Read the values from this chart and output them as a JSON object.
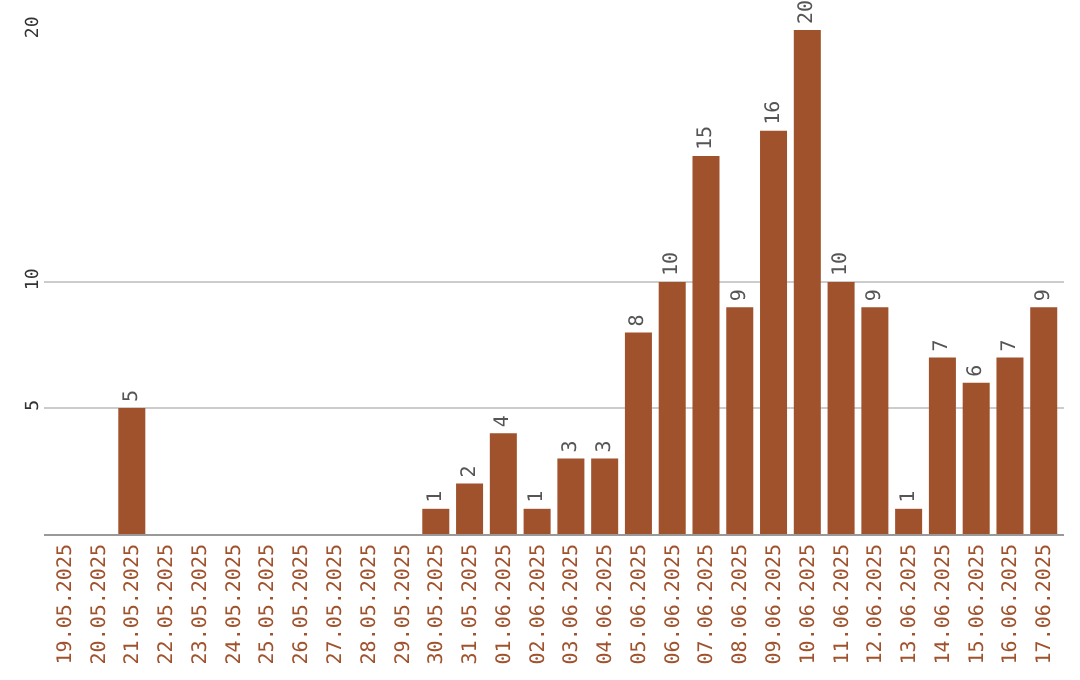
{
  "chart_data": {
    "type": "bar",
    "categories": [
      "19.05.2025",
      "20.05.2025",
      "21.05.2025",
      "22.05.2025",
      "23.05.2025",
      "24.05.2025",
      "25.05.2025",
      "26.05.2025",
      "27.05.2025",
      "28.05.2025",
      "29.05.2025",
      "30.05.2025",
      "31.05.2025",
      "01.06.2025",
      "02.06.2025",
      "03.06.2025",
      "04.06.2025",
      "05.06.2025",
      "06.06.2025",
      "07.06.2025",
      "08.06.2025",
      "09.06.2025",
      "10.06.2025",
      "11.06.2025",
      "12.06.2025",
      "13.06.2025",
      "14.06.2025",
      "15.06.2025",
      "16.06.2025",
      "17.06.2025"
    ],
    "values": [
      0,
      0,
      5,
      0,
      0,
      0,
      0,
      0,
      0,
      0,
      0,
      1,
      2,
      4,
      1,
      3,
      3,
      8,
      10,
      15,
      9,
      16,
      20,
      10,
      9,
      1,
      7,
      6,
      7,
      9
    ],
    "value_labels": [
      null,
      null,
      "5",
      null,
      null,
      null,
      null,
      null,
      null,
      null,
      null,
      "1",
      "2",
      "4",
      "1",
      "3",
      "3",
      "8",
      "10",
      "15",
      "9",
      "16",
      "20",
      "10",
      "9",
      "1",
      "7",
      "6",
      "7",
      "9"
    ],
    "color": "#a0522d",
    "ylim": [
      0,
      20
    ],
    "yticks": [
      5,
      10,
      20
    ],
    "grid": "y"
  }
}
